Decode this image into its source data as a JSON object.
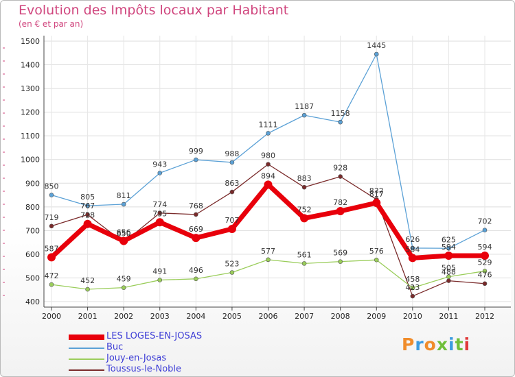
{
  "header": {
    "title": "Evolution des Impôts locaux par Habitant",
    "subtitle": "(en € et par an)"
  },
  "brand": {
    "logo_text": "Proxiti",
    "letter_colors": [
      "#f08c2a",
      "#3b9be0",
      "#f08c2a",
      "#6fbf3a",
      "#3b9be0",
      "#6fbf3a",
      "#e03a3a"
    ]
  },
  "chart_data": {
    "type": "line",
    "title": "Evolution des Impôts locaux par Habitant",
    "subtitle": "(en € et par an)",
    "x": [
      "2000",
      "2001",
      "2002",
      "2003",
      "2004",
      "2005",
      "2006",
      "2007",
      "2008",
      "2009",
      "2010",
      "2011",
      "2012"
    ],
    "ylim": [
      400,
      1500
    ],
    "yticks": [
      400,
      500,
      600,
      700,
      800,
      900,
      1000,
      1100,
      1200,
      1300,
      1400,
      1500
    ],
    "grid": true,
    "legend_position": "bottom-left",
    "series": [
      {
        "name": "LES LOGES-EN-JOSAS",
        "color": "#e8000b",
        "values": [
          587,
          728,
          656,
          735,
          669,
          707,
          894,
          752,
          782,
          817,
          584,
          594,
          594
        ],
        "labels": [
          "587",
          "728",
          "656",
          "735",
          "669",
          "707",
          "894",
          "752",
          "782",
          "817",
          "584",
          "594",
          "594"
        ]
      },
      {
        "name": "Buc",
        "color": "#5ba1d6",
        "values": [
          850,
          805,
          811,
          943,
          999,
          988,
          1111,
          1187,
          1158,
          1445,
          626,
          625,
          702
        ],
        "labels": [
          "850",
          "805",
          "811",
          "943",
          "999",
          "988",
          "1111",
          "1187",
          "1158",
          "1445",
          "626",
          "625",
          "702"
        ]
      },
      {
        "name": "Jouy-en-Josas",
        "color": "#9acd5a",
        "values": [
          472,
          452,
          459,
          491,
          496,
          523,
          577,
          561,
          569,
          576,
          458,
          505,
          529
        ],
        "labels": [
          "472",
          "452",
          "459",
          "491",
          "496",
          "523",
          "577",
          "561",
          "569",
          "576",
          "458",
          "505",
          "529"
        ]
      },
      {
        "name": "Toussus-le-Noble",
        "color": "#7a2a2a",
        "values": [
          719,
          767,
          650,
          774,
          768,
          863,
          980,
          883,
          928,
          832,
          423,
          488,
          476
        ],
        "labels": [
          "719",
          "767",
          "650",
          "774",
          "768",
          "863",
          "980",
          "883",
          "928",
          "832",
          "423",
          "488",
          "476"
        ]
      }
    ]
  }
}
